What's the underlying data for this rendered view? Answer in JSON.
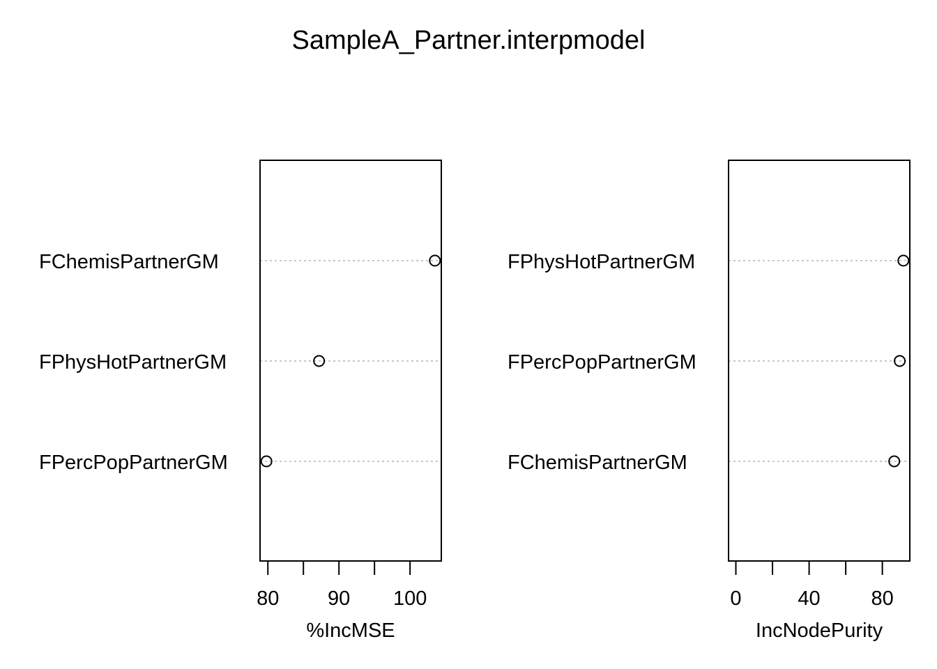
{
  "title": "SampleA_Partner.interpmodel",
  "chart_data": [
    {
      "type": "scatter",
      "subtype": "dotchart",
      "xlabel": "%IncMSE",
      "xlim": [
        78.9,
        104.4
      ],
      "xticks": [
        80,
        85,
        90,
        95,
        100
      ],
      "xtick_labels": [
        "80",
        "",
        "90",
        "",
        "100"
      ],
      "categories": [
        "FChemisPartnerGM",
        "FPhysHotPartnerGM",
        "FPercPopPartnerGM"
      ],
      "values": [
        103.5,
        87.2,
        79.8
      ],
      "grid": "dotted horizontal guide lines"
    },
    {
      "type": "scatter",
      "subtype": "dotchart",
      "xlabel": "IncNodePurity",
      "xlim": [
        -4,
        95
      ],
      "xticks": [
        0,
        20,
        40,
        60,
        80
      ],
      "xtick_labels": [
        "0",
        "",
        "40",
        "",
        "80"
      ],
      "categories": [
        "FPhysHotPartnerGM",
        "FPercPopPartnerGM",
        "FChemisPartnerGM"
      ],
      "values": [
        91.5,
        89.5,
        86.5
      ],
      "grid": "dotted horizontal guide lines"
    }
  ]
}
